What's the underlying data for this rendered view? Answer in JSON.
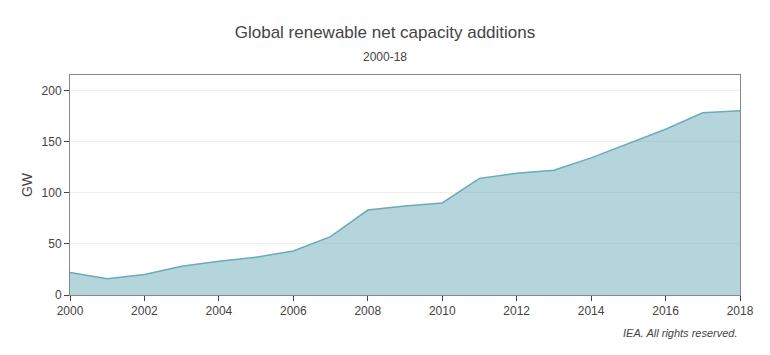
{
  "chart_data": {
    "type": "area",
    "title": "Global renewable net capacity additions",
    "subtitle": "2000-18",
    "ylabel": "GW",
    "annotation": "IEA. All rights reserved.",
    "x": [
      2000,
      2001,
      2002,
      2003,
      2004,
      2005,
      2006,
      2007,
      2008,
      2009,
      2010,
      2011,
      2012,
      2013,
      2014,
      2015,
      2016,
      2017,
      2018
    ],
    "values": [
      22,
      16,
      20,
      28,
      33,
      37,
      43,
      57,
      83,
      87,
      90,
      114,
      119,
      122,
      134,
      148,
      162,
      178,
      180
    ],
    "color": "#6aabb8",
    "xlim": [
      2000,
      2018
    ],
    "xticks": [
      2000,
      2002,
      2004,
      2006,
      2008,
      2010,
      2012,
      2014,
      2016,
      2018
    ],
    "ylim": [
      0,
      215
    ],
    "yticks": [
      0,
      50,
      100,
      150,
      200
    ],
    "grid": true
  }
}
